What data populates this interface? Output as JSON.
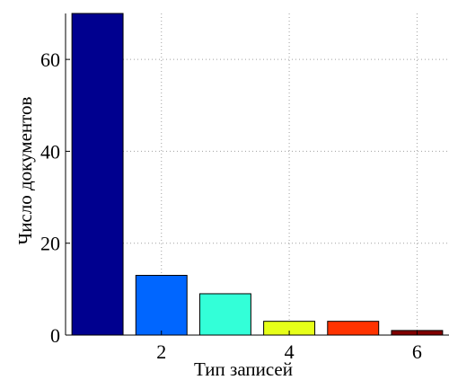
{
  "chart_data": {
    "type": "bar",
    "title": "",
    "xlabel": "Тип записей",
    "ylabel": "Число документов",
    "x": [
      1,
      2,
      3,
      4,
      5,
      6
    ],
    "values": [
      71,
      13,
      9,
      3,
      3,
      1
    ],
    "bar_colors": [
      "#00008f",
      "#0066ff",
      "#33ffd8",
      "#e6ff19",
      "#ff3300",
      "#800000"
    ],
    "xlim": [
      0.5,
      6.5
    ],
    "ylim": [
      0,
      70
    ],
    "xticks": [
      2,
      4,
      6
    ],
    "yticks": [
      0,
      20,
      40,
      60
    ],
    "grid": true
  }
}
